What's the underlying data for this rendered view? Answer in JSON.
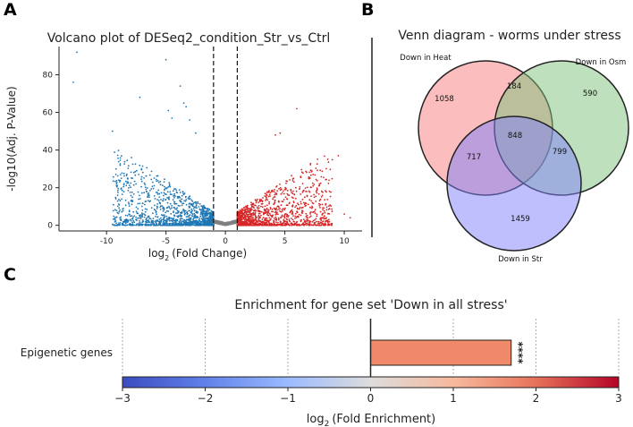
{
  "panels": {
    "a": "A",
    "b": "B",
    "c": "C"
  },
  "chart_data": [
    {
      "type": "scatter",
      "panel": "A",
      "title": "Volcano plot of DESeq2_condition_Str_vs_Ctrl",
      "xlabel_main": "log",
      "xlabel_sub": "2",
      "xlabel_rest": "(Fold Change)",
      "ylabel": "-log10(Adj. P-Value)",
      "xlim": [
        -14,
        11.5
      ],
      "ylim": [
        -3,
        95
      ],
      "x_ticks": [
        -10,
        -5,
        0,
        5,
        10
      ],
      "y_ticks": [
        0,
        20,
        40,
        60,
        80
      ],
      "threshold_lines_x": [
        -1,
        1
      ],
      "colors": {
        "down": "#1f77b4",
        "up": "#d62728",
        "ns": "#808080"
      },
      "groups": [
        {
          "name": "down",
          "x_range": [
            -9.5,
            -1
          ],
          "count": 1400
        },
        {
          "name": "up",
          "x_range": [
            1,
            9
          ],
          "count": 1400
        },
        {
          "name": "ns",
          "x_range": [
            -1,
            1
          ],
          "count": 500
        }
      ],
      "outliers": [
        {
          "x": -12.5,
          "y": 92
        },
        {
          "x": -12.8,
          "y": 76
        },
        {
          "x": -5,
          "y": 88
        },
        {
          "x": -3.8,
          "y": 74
        },
        {
          "x": -7.2,
          "y": 68
        },
        {
          "x": -3.5,
          "y": 65
        },
        {
          "x": -3.3,
          "y": 63
        },
        {
          "x": -4.8,
          "y": 61
        },
        {
          "x": -4.5,
          "y": 57
        },
        {
          "x": -9.5,
          "y": 50
        },
        {
          "x": -3,
          "y": 56
        },
        {
          "x": -2.5,
          "y": 49
        },
        {
          "x": 6,
          "y": 62
        },
        {
          "x": 4.2,
          "y": 48
        },
        {
          "x": 4.6,
          "y": 49
        },
        {
          "x": 10.5,
          "y": 4
        },
        {
          "x": 9.5,
          "y": 37
        },
        {
          "x": 10,
          "y": 6
        }
      ]
    },
    {
      "type": "venn",
      "panel": "B",
      "title": "Venn diagram - worms under stress",
      "sets": [
        {
          "label": "Down in Heat",
          "color": "#f77b7b"
        },
        {
          "label": "Down in Osm",
          "color": "#7dc17a"
        },
        {
          "label": "Down in Str",
          "color": "#8080fb"
        }
      ],
      "regions": [
        {
          "sets": [
            "Heat"
          ],
          "value": 1058
        },
        {
          "sets": [
            "Osm"
          ],
          "value": 590
        },
        {
          "sets": [
            "Str"
          ],
          "value": 1459
        },
        {
          "sets": [
            "Heat",
            "Osm"
          ],
          "value": 184
        },
        {
          "sets": [
            "Heat",
            "Str"
          ],
          "value": 717
        },
        {
          "sets": [
            "Osm",
            "Str"
          ],
          "value": 799
        },
        {
          "sets": [
            "Heat",
            "Osm",
            "Str"
          ],
          "value": 848
        }
      ]
    },
    {
      "type": "bar",
      "panel": "C",
      "orientation": "horizontal",
      "title": "Enrichment for gene set 'Down in all stress'",
      "categories": [
        "Epigenetic genes"
      ],
      "values": [
        1.7
      ],
      "bar_color": "#f0896a",
      "annotation": "****",
      "xlim": [
        -3,
        3
      ],
      "x_ticks": [
        -3,
        -2,
        -1,
        0,
        1,
        2,
        3
      ],
      "x_tick_labels": [
        "−3",
        "−2",
        "−1",
        "0",
        "1",
        "2",
        "3"
      ],
      "colorbar": {
        "cmap": "coolwarm",
        "range": [
          -3,
          3
        ]
      },
      "xlabel_main": "log",
      "xlabel_sub": "2",
      "xlabel_rest": "(Fold Enrichment)"
    }
  ]
}
